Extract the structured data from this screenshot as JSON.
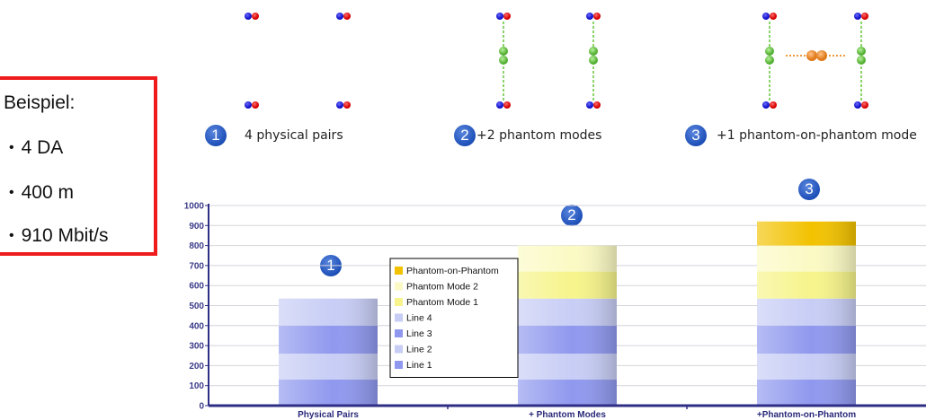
{
  "example": {
    "heading": "Beispiel:",
    "items": [
      "4 DA",
      "400 m",
      "910 Mbit/s"
    ],
    "bullet": "•",
    "border_color": "#ee1c1c"
  },
  "steps": [
    {
      "number": "1",
      "label": "4 physical pairs"
    },
    {
      "number": "2",
      "label": "+2 phantom modes"
    },
    {
      "number": "3",
      "label": "+1 phantom-on-phantom mode"
    }
  ],
  "chart_data": {
    "type": "bar",
    "stacked": true,
    "categories": [
      "Physical Pairs",
      "+ Phantom Modes",
      "+Phantom-on-Phantom"
    ],
    "bar_badges": [
      "1",
      "2",
      "3"
    ],
    "ylim": [
      0,
      1000
    ],
    "yticks": [
      0,
      100,
      200,
      300,
      400,
      500,
      600,
      700,
      800,
      900,
      1000
    ],
    "grid": true,
    "legend_placement": "center",
    "series": [
      {
        "name": "Line 1",
        "color": "#8f98ee",
        "values": [
          130,
          130,
          130
        ]
      },
      {
        "name": "Line 2",
        "color": "#c7cdf5",
        "values": [
          130,
          130,
          130
        ]
      },
      {
        "name": "Line 3",
        "color": "#8f98ee",
        "values": [
          140,
          140,
          140
        ]
      },
      {
        "name": "Line 4",
        "color": "#c7cdf5",
        "values": [
          135,
          135,
          135
        ]
      },
      {
        "name": "Phantom Mode 1",
        "color": "#f6f48a",
        "values": [
          0,
          135,
          135
        ]
      },
      {
        "name": "Phantom Mode 2",
        "color": "#fbfac4",
        "values": [
          0,
          130,
          130
        ]
      },
      {
        "name": "Phantom-on-Phantom",
        "color": "#f2c200",
        "values": [
          0,
          0,
          120
        ]
      }
    ],
    "legend_order": [
      "Phantom-on-Phantom",
      "Phantom Mode 2",
      "Phantom Mode 1",
      "Line 4",
      "Line 3",
      "Line 2",
      "Line 1"
    ]
  }
}
